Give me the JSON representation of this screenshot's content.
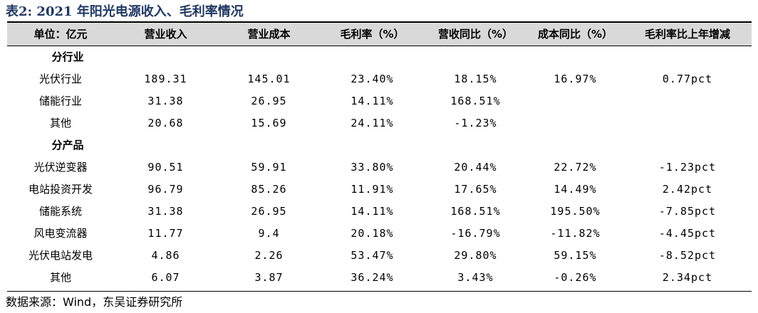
{
  "title": "表2: 2021 年阳光电源收入、毛利率情况",
  "headers": [
    "单位：亿元",
    "营业收入",
    "营业成本",
    "毛利率（%）",
    "营收同比（%）",
    "成本同比（%）",
    "毛利率比上年增减"
  ],
  "sections": [
    {
      "label": "分行业",
      "rows": [
        {
          "name": "光伏行业",
          "revenue": "189.31",
          "cost": "145.01",
          "margin": "23.40%",
          "rev_yoy": "18.15%",
          "cost_yoy": "16.97%",
          "margin_change": "0.77pct"
        },
        {
          "name": "储能行业",
          "revenue": "31.38",
          "cost": "26.95",
          "margin": "14.11%",
          "rev_yoy": "168.51%",
          "cost_yoy": "",
          "margin_change": ""
        },
        {
          "name": "其他",
          "revenue": "20.68",
          "cost": "15.69",
          "margin": "24.11%",
          "rev_yoy": "-1.23%",
          "cost_yoy": "",
          "margin_change": ""
        }
      ]
    },
    {
      "label": "分产品",
      "rows": [
        {
          "name": "光伏逆变器",
          "revenue": "90.51",
          "cost": "59.91",
          "margin": "33.80%",
          "rev_yoy": "20.44%",
          "cost_yoy": "22.72%",
          "margin_change": "-1.23pct"
        },
        {
          "name": "电站投资开发",
          "revenue": "96.79",
          "cost": "85.26",
          "margin": "11.91%",
          "rev_yoy": "17.65%",
          "cost_yoy": "14.49%",
          "margin_change": "2.42pct"
        },
        {
          "name": "储能系统",
          "revenue": "31.38",
          "cost": "26.95",
          "margin": "14.11%",
          "rev_yoy": "168.51%",
          "cost_yoy": "195.50%",
          "margin_change": "-7.85pct"
        },
        {
          "name": "风电变流器",
          "revenue": "11.77",
          "cost": "9.4",
          "margin": "20.18%",
          "rev_yoy": "-16.79%",
          "cost_yoy": "-11.82%",
          "margin_change": "-4.45pct"
        },
        {
          "name": "光伏电站发电",
          "revenue": "4.86",
          "cost": "2.26",
          "margin": "53.47%",
          "rev_yoy": "29.80%",
          "cost_yoy": "59.15%",
          "margin_change": "-8.52pct"
        },
        {
          "name": "其他",
          "revenue": "6.07",
          "cost": "3.87",
          "margin": "36.24%",
          "rev_yoy": "3.43%",
          "cost_yoy": "-0.26%",
          "margin_change": "2.34pct"
        }
      ]
    }
  ],
  "source": "数据来源：Wind，东吴证券研究所"
}
